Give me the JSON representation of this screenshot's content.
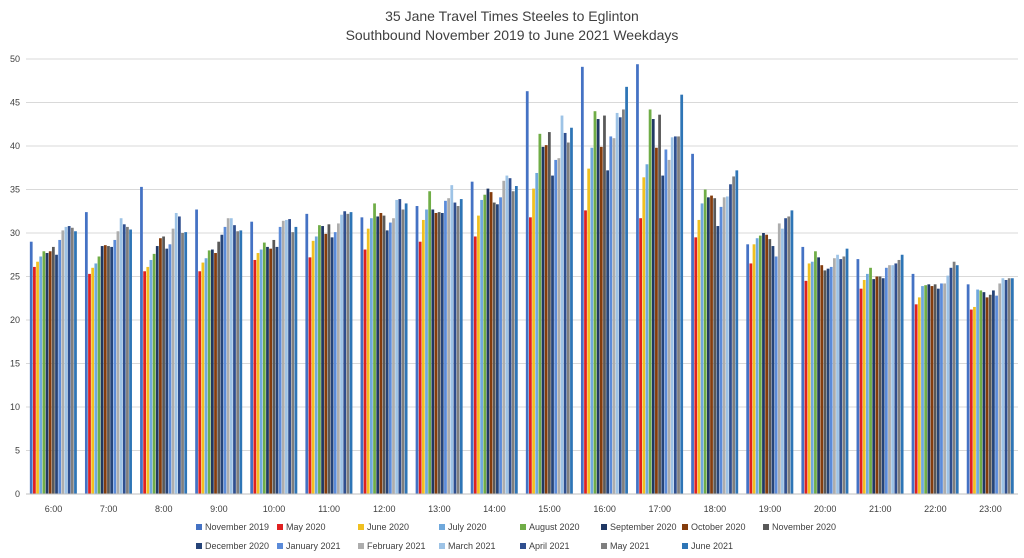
{
  "chart_data": {
    "type": "bar",
    "title": "35 Jane Travel Times Steeles to Eglinton",
    "subtitle": "Southbound November 2019 to June 2021 Weekdays",
    "xlabel": "",
    "ylabel": "",
    "ylim": [
      0,
      50
    ],
    "yticks": [
      0,
      5,
      10,
      15,
      20,
      25,
      30,
      35,
      40,
      45,
      50
    ],
    "grid": true,
    "legend_position": "bottom",
    "categories": [
      "6:00",
      "7:00",
      "8:00",
      "9:00",
      "10:00",
      "11:00",
      "12:00",
      "13:00",
      "14:00",
      "15:00",
      "16:00",
      "17:00",
      "18:00",
      "19:00",
      "20:00",
      "21:00",
      "22:00",
      "23:00"
    ],
    "series": [
      {
        "name": "November 2019",
        "color": "#4472C4",
        "values": [
          29.0,
          32.4,
          35.3,
          32.7,
          31.3,
          32.2,
          31.8,
          33.1,
          35.9,
          46.3,
          49.1,
          49.4,
          39.1,
          28.7,
          28.4,
          27.0,
          25.3,
          24.1
        ]
      },
      {
        "name": "May 2020",
        "color": "#E02020",
        "values": [
          26.1,
          25.3,
          25.6,
          25.6,
          26.9,
          27.2,
          28.1,
          29.0,
          29.6,
          31.8,
          32.6,
          31.7,
          29.5,
          26.5,
          24.5,
          23.6,
          21.8,
          21.2
        ]
      },
      {
        "name": "June 2020",
        "color": "#F0C020",
        "values": [
          26.7,
          26.0,
          26.1,
          26.6,
          27.7,
          29.1,
          30.5,
          31.5,
          32.0,
          35.1,
          37.4,
          36.4,
          31.5,
          28.7,
          26.5,
          24.6,
          22.6,
          21.5
        ]
      },
      {
        "name": "July 2020",
        "color": "#6FA8DC",
        "values": [
          27.3,
          26.5,
          26.9,
          27.1,
          28.1,
          29.6,
          31.7,
          32.7,
          33.8,
          36.9,
          39.8,
          37.9,
          33.4,
          29.4,
          26.7,
          25.3,
          23.9,
          23.5
        ]
      },
      {
        "name": "August 2020",
        "color": "#70AD47",
        "values": [
          27.9,
          27.3,
          27.6,
          28.0,
          28.9,
          30.9,
          33.4,
          34.8,
          34.4,
          41.4,
          44.0,
          44.2,
          35.0,
          29.7,
          27.9,
          26.0,
          24.0,
          23.4
        ]
      },
      {
        "name": "September 2020",
        "color": "#203864",
        "values": [
          27.7,
          28.5,
          28.5,
          28.1,
          28.4,
          30.8,
          31.9,
          32.7,
          35.1,
          39.9,
          43.1,
          43.1,
          34.1,
          30.0,
          27.2,
          24.7,
          24.1,
          23.2
        ]
      },
      {
        "name": "October 2020",
        "color": "#843C0C",
        "values": [
          27.9,
          28.6,
          29.4,
          27.7,
          28.2,
          29.9,
          32.3,
          32.3,
          34.7,
          40.1,
          39.9,
          39.8,
          34.3,
          29.8,
          26.3,
          25.0,
          23.9,
          22.6
        ]
      },
      {
        "name": "November 2020",
        "color": "#595959",
        "values": [
          28.4,
          28.5,
          29.6,
          29.0,
          29.2,
          31.0,
          32.0,
          32.4,
          33.5,
          41.6,
          43.5,
          43.6,
          34.0,
          29.3,
          25.7,
          25.0,
          24.1,
          22.9
        ]
      },
      {
        "name": "December 2020",
        "color": "#264478",
        "values": [
          27.5,
          28.4,
          28.2,
          29.8,
          28.4,
          29.5,
          30.3,
          32.3,
          33.3,
          36.6,
          37.2,
          36.6,
          30.8,
          28.5,
          25.9,
          24.8,
          23.6,
          23.4
        ]
      },
      {
        "name": "January 2021",
        "color": "#5B8BD9",
        "values": [
          29.2,
          29.2,
          28.7,
          30.7,
          30.7,
          30.1,
          31.2,
          33.7,
          34.1,
          38.4,
          41.1,
          39.6,
          33.0,
          27.3,
          26.1,
          26.0,
          24.2,
          22.8
        ]
      },
      {
        "name": "February 2021",
        "color": "#ADADAD",
        "values": [
          30.3,
          30.2,
          30.5,
          31.7,
          31.4,
          31.1,
          31.7,
          34.0,
          36.0,
          38.6,
          40.9,
          38.4,
          34.1,
          31.1,
          27.1,
          26.3,
          24.2,
          24.2
        ]
      },
      {
        "name": "March 2021",
        "color": "#9DC3E6",
        "values": [
          30.7,
          31.7,
          32.3,
          31.7,
          31.5,
          32.1,
          33.8,
          35.5,
          36.6,
          43.5,
          43.8,
          41.0,
          34.2,
          30.5,
          27.5,
          26.3,
          25.1,
          24.8
        ]
      },
      {
        "name": "April 2021",
        "color": "#2F4F8F",
        "values": [
          30.8,
          31.0,
          31.9,
          30.9,
          31.6,
          32.5,
          33.9,
          33.5,
          36.3,
          41.5,
          43.3,
          41.1,
          35.6,
          31.7,
          27.0,
          26.5,
          26.0,
          24.6
        ]
      },
      {
        "name": "May 2021",
        "color": "#7F7F7F",
        "values": [
          30.6,
          30.7,
          30.0,
          30.2,
          30.1,
          32.2,
          32.7,
          33.1,
          34.8,
          40.4,
          44.2,
          41.1,
          36.5,
          31.9,
          27.3,
          26.9,
          26.7,
          24.8
        ]
      },
      {
        "name": "June 2021",
        "color": "#2E75B6",
        "values": [
          30.2,
          30.4,
          30.1,
          30.3,
          30.7,
          32.4,
          33.4,
          33.9,
          35.4,
          42.1,
          46.8,
          45.9,
          37.2,
          32.6,
          28.2,
          27.5,
          26.3,
          24.8
        ]
      }
    ]
  }
}
